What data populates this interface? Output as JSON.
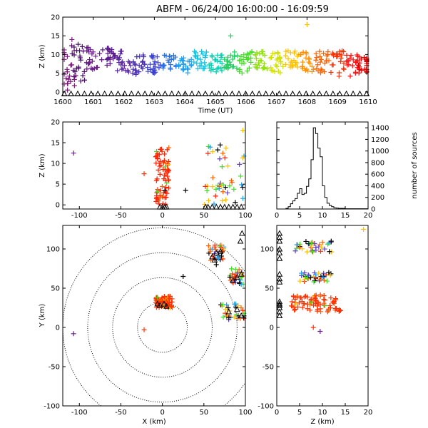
{
  "title": "ABFM - 06/24/00 16:00:00 - 16:09:59",
  "colors": {
    "background": "#ffffff",
    "axes": "#000000",
    "station_marker": "#000000",
    "range_rings": "#000000"
  },
  "chart_data": [
    {
      "id": "time_height",
      "type": "scatter",
      "xlabel": "Time (UT)",
      "ylabel": "Z (km)",
      "xlim": [
        1600,
        1610
      ],
      "ylim": [
        -1,
        20
      ],
      "xticks": [
        "1600",
        "1601",
        "1602",
        "1603",
        "1604",
        "1605",
        "1606",
        "1607",
        "1608",
        "1609",
        "1610"
      ],
      "yticks": [
        "0",
        "5",
        "10",
        "15",
        "20"
      ],
      "color_by": "time",
      "marker": "+",
      "clusters": [
        {
          "x": 1600.2,
          "y": [
            0,
            12
          ],
          "color": "#7a1a7a"
        },
        {
          "x": 1600.5,
          "y": [
            2,
            13
          ],
          "color": "#4b0d6a"
        },
        {
          "x": 1601.0,
          "y": [
            6,
            12
          ],
          "color": "#6a1a8a"
        },
        {
          "x": 1601.5,
          "y": [
            7,
            12
          ],
          "color": "#5a1a8a"
        },
        {
          "x": 1602.0,
          "y": [
            5,
            11
          ],
          "color": "#5b2aa0"
        },
        {
          "x": 1602.5,
          "y": [
            4,
            10
          ],
          "color": "#4a30b0"
        },
        {
          "x": 1603.0,
          "y": [
            5,
            10
          ],
          "color": "#3a40d0"
        },
        {
          "x": 1603.5,
          "y": [
            6,
            10
          ],
          "color": "#2a70e0"
        },
        {
          "x": 1604.0,
          "y": [
            5,
            10
          ],
          "color": "#20a0f0"
        },
        {
          "x": 1604.5,
          "y": [
            6,
            11
          ],
          "color": "#10c0e0"
        },
        {
          "x": 1605.0,
          "y": [
            5,
            10
          ],
          "color": "#00d0b0"
        },
        {
          "x": 1605.5,
          "y": [
            6,
            11
          ],
          "color": "#20d060"
        },
        {
          "x": 1606.0,
          "y": [
            5,
            11
          ],
          "color": "#40e020"
        },
        {
          "x": 1606.5,
          "y": [
            6,
            11
          ],
          "color": "#90e010"
        },
        {
          "x": 1607.0,
          "y": [
            5,
            11
          ],
          "color": "#d0e000"
        },
        {
          "x": 1607.5,
          "y": [
            6,
            11
          ],
          "color": "#ffc000"
        },
        {
          "x": 1608.0,
          "y": [
            5,
            11
          ],
          "color": "#ff9000"
        },
        {
          "x": 1608.5,
          "y": [
            5,
            11
          ],
          "color": "#ff6000"
        },
        {
          "x": 1609.0,
          "y": [
            4,
            11
          ],
          "color": "#ff3000"
        },
        {
          "x": 1609.5,
          "y": [
            4,
            10
          ],
          "color": "#ff1010"
        },
        {
          "x": 1609.9,
          "y": [
            5,
            10
          ],
          "color": "#e00000"
        }
      ],
      "outliers": [
        {
          "x": 1605.5,
          "y": 15,
          "color": "#20d060"
        },
        {
          "x": 1608.0,
          "y": 18,
          "color": "#ffc000"
        },
        {
          "x": 1600.3,
          "y": 14,
          "color": "#7a1a7a"
        }
      ],
      "station_markers": {
        "y": -0.5,
        "symbol": "triangle"
      }
    },
    {
      "id": "x_height",
      "type": "scatter",
      "xlabel": "",
      "ylabel": "Z (km)",
      "xlim": [
        -120,
        100
      ],
      "ylim": [
        -1,
        20
      ],
      "xticks": [
        "-100",
        "-50",
        "0",
        "50",
        "100"
      ],
      "yticks": [
        "0",
        "5",
        "10",
        "15",
        "20"
      ],
      "marker": "+",
      "points": [
        {
          "x": -107,
          "y": 12.5,
          "color": "#6a1a8a"
        },
        {
          "x": -22,
          "y": 7.5,
          "color": "#ff3000"
        },
        {
          "x": 3,
          "y": 3.5,
          "color": "#000000"
        },
        {
          "x": 28,
          "y": 3.5,
          "color": "#000000"
        },
        {
          "x": 97,
          "y": 18,
          "color": "#ffc000"
        }
      ],
      "clusters": [
        {
          "x": [
            -8,
            8
          ],
          "y": [
            0,
            14
          ],
          "color": "#ff2000"
        },
        {
          "x": [
            50,
            100
          ],
          "y": [
            0,
            15
          ],
          "color": "#6040c0"
        }
      ],
      "station_markers": {
        "x": [
          -3,
          0,
          3,
          5,
          52,
          55,
          60,
          65,
          70,
          75,
          80,
          85,
          90,
          95
        ],
        "y": -0.5,
        "symbol": "triangle"
      }
    },
    {
      "id": "height_histogram",
      "type": "bar",
      "xlabel": "",
      "ylabel": "number of sources",
      "xlim": [
        0,
        20
      ],
      "ylim": [
        0,
        1500
      ],
      "xticks": [
        "0",
        "5",
        "10",
        "15",
        "20"
      ],
      "yticks": [
        "0",
        "200",
        "400",
        "600",
        "800",
        "1000",
        "1200",
        "1400"
      ],
      "bin_edges": [
        2,
        2.5,
        3,
        3.5,
        4,
        4.5,
        5,
        5.5,
        6,
        6.5,
        7,
        7.5,
        8,
        8.5,
        9,
        9.5,
        10,
        10.5,
        11,
        11.5,
        12,
        12.5,
        13,
        13.5,
        14,
        15,
        16,
        17,
        18,
        19,
        20
      ],
      "values": [
        10,
        40,
        90,
        140,
        180,
        270,
        350,
        250,
        270,
        390,
        520,
        850,
        1400,
        1300,
        1050,
        900,
        400,
        200,
        100,
        60,
        40,
        20,
        15,
        10,
        10,
        5,
        5,
        5,
        5,
        5
      ]
    },
    {
      "id": "plan_view",
      "type": "scatter",
      "xlabel": "X (km)",
      "ylabel": "Y (km)",
      "xlim": [
        -120,
        100
      ],
      "ylim": [
        -100,
        130
      ],
      "xticks": [
        "-100",
        "-50",
        "0",
        "50",
        "100"
      ],
      "yticks": [
        "-100",
        "-50",
        "0",
        "50",
        "100"
      ],
      "range_rings_km": [
        30,
        60,
        90,
        120
      ],
      "ring_center": [
        0,
        0
      ],
      "marker": "+",
      "points": [
        {
          "x": -107,
          "y": -8,
          "color": "#6a1a8a"
        },
        {
          "x": -22,
          "y": -3,
          "color": "#ff3000"
        },
        {
          "x": 25,
          "y": 65,
          "color": "#000000"
        },
        {
          "x": 65,
          "y": 80,
          "color": "#000000"
        },
        {
          "x": 95,
          "y": 55,
          "color": "#20a0f0"
        }
      ],
      "clusters": [
        {
          "x": [
            -8,
            12
          ],
          "y": [
            25,
            40
          ],
          "color": "#ff3000"
        },
        {
          "x": [
            55,
            75
          ],
          "y": [
            85,
            105
          ],
          "color": "#6040c0"
        },
        {
          "x": [
            80,
            100
          ],
          "y": [
            55,
            75
          ],
          "color": "#5a1a8a"
        },
        {
          "x": [
            70,
            100
          ],
          "y": [
            10,
            30
          ],
          "color": "#40e020"
        }
      ],
      "station_markers": [
        {
          "x": -3,
          "y": 28
        },
        {
          "x": 2,
          "y": 30
        },
        {
          "x": 5,
          "y": 27
        },
        {
          "x": -6,
          "y": 30
        },
        {
          "x": 60,
          "y": 90
        },
        {
          "x": 65,
          "y": 95
        },
        {
          "x": 70,
          "y": 97
        },
        {
          "x": 63,
          "y": 86
        },
        {
          "x": 85,
          "y": 60
        },
        {
          "x": 90,
          "y": 64
        },
        {
          "x": 95,
          "y": 68
        },
        {
          "x": 80,
          "y": 20
        },
        {
          "x": 90,
          "y": 23
        },
        {
          "x": 95,
          "y": 15
        },
        {
          "x": 94,
          "y": 110
        },
        {
          "x": 96,
          "y": 120
        }
      ]
    },
    {
      "id": "z_y",
      "type": "scatter",
      "xlabel": "Z (km)",
      "ylabel": "",
      "xlim": [
        0,
        20
      ],
      "ylim": [
        -100,
        130
      ],
      "xticks": [
        "0",
        "5",
        "10",
        "15",
        "20"
      ],
      "yticks": [
        "-100",
        "-50",
        "0",
        "50",
        "100"
      ],
      "marker": "+",
      "points": [
        {
          "x": 19,
          "y": 125,
          "color": "#ffc000"
        },
        {
          "x": 8,
          "y": 0,
          "color": "#ff3000"
        },
        {
          "x": 9.5,
          "y": -5,
          "color": "#6a1a8a"
        }
      ],
      "clusters": [
        {
          "x": [
            4,
            12
          ],
          "y": [
            95,
            110
          ],
          "color": "#6040c0"
        },
        {
          "x": [
            5,
            12
          ],
          "y": [
            58,
            70
          ],
          "color": "#5a1a8a"
        },
        {
          "x": [
            3,
            14
          ],
          "y": [
            20,
            42
          ],
          "color": "#ff3000"
        }
      ],
      "station_markers": {
        "x": 0.3,
        "y": [
          15,
          20,
          25,
          28,
          30,
          33,
          58,
          62,
          68,
          88,
          95,
          100,
          110,
          115,
          120
        ]
      }
    }
  ]
}
